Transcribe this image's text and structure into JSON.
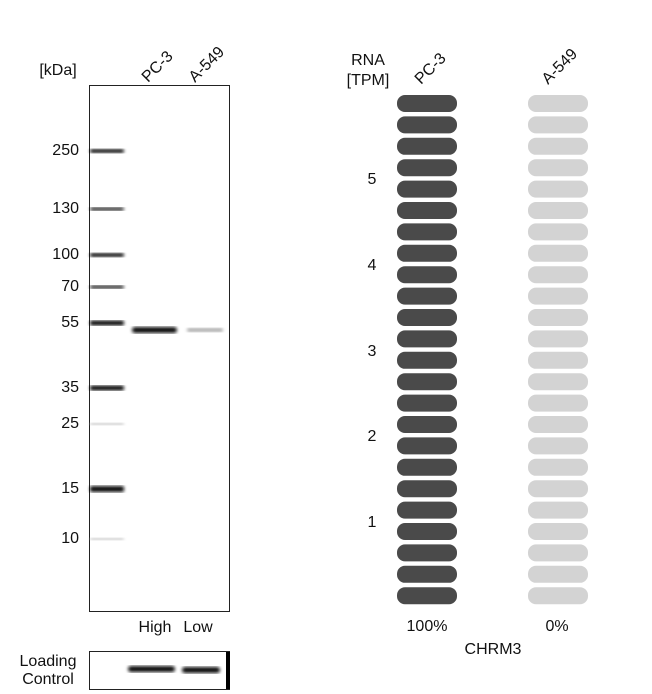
{
  "blot": {
    "unit_label": "[kDa]",
    "lanes": [
      "PC-3",
      "A-549"
    ],
    "markers": [
      250,
      130,
      100,
      70,
      55,
      35,
      25,
      15,
      10
    ],
    "levels": [
      "High",
      "Low"
    ],
    "loading_control": [
      "Loading",
      "Control"
    ]
  },
  "rna": {
    "header": [
      "RNA",
      "[TPM]"
    ],
    "columns": [
      "PC-3",
      "A-549"
    ],
    "ticks": [
      1,
      2,
      3,
      4,
      5
    ],
    "percentages": [
      "100%",
      "0%"
    ],
    "gene": "CHRM3"
  }
}
